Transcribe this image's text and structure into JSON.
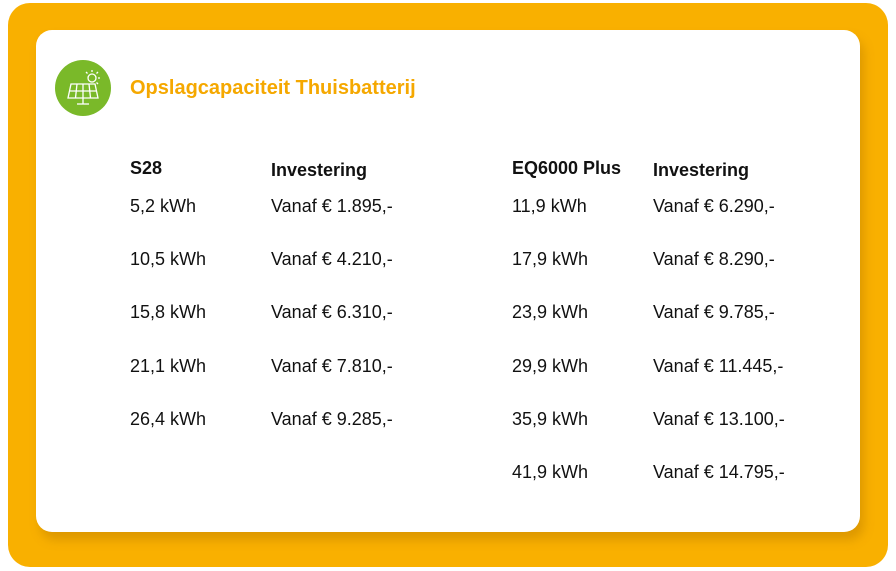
{
  "title": "Opslagcapaciteit Thuisbatterij",
  "tables": [
    {
      "headers": [
        "S28",
        "Investering"
      ],
      "rows": [
        [
          "5,2 kWh",
          "Vanaf € 1.895,-"
        ],
        [
          "10,5 kWh",
          "Vanaf € 4.210,-"
        ],
        [
          "15,8 kWh",
          "Vanaf € 6.310,-"
        ],
        [
          "21,1 kWh",
          "Vanaf € 7.810,-"
        ],
        [
          "26,4 kWh",
          "Vanaf € 9.285,-"
        ]
      ]
    },
    {
      "headers": [
        "EQ6000 Plus",
        "Investering"
      ],
      "rows": [
        [
          "11,9 kWh",
          "Vanaf € 6.290,-"
        ],
        [
          "17,9 kWh",
          "Vanaf € 8.290,-"
        ],
        [
          "23,9 kWh",
          "Vanaf € 9.785,-"
        ],
        [
          "29,9 kWh",
          "Vanaf € 11.445,-"
        ],
        [
          "35,9 kWh",
          "Vanaf € 13.100,-"
        ],
        [
          "41,9 kWh",
          "Vanaf € 14.795,-"
        ]
      ]
    }
  ]
}
